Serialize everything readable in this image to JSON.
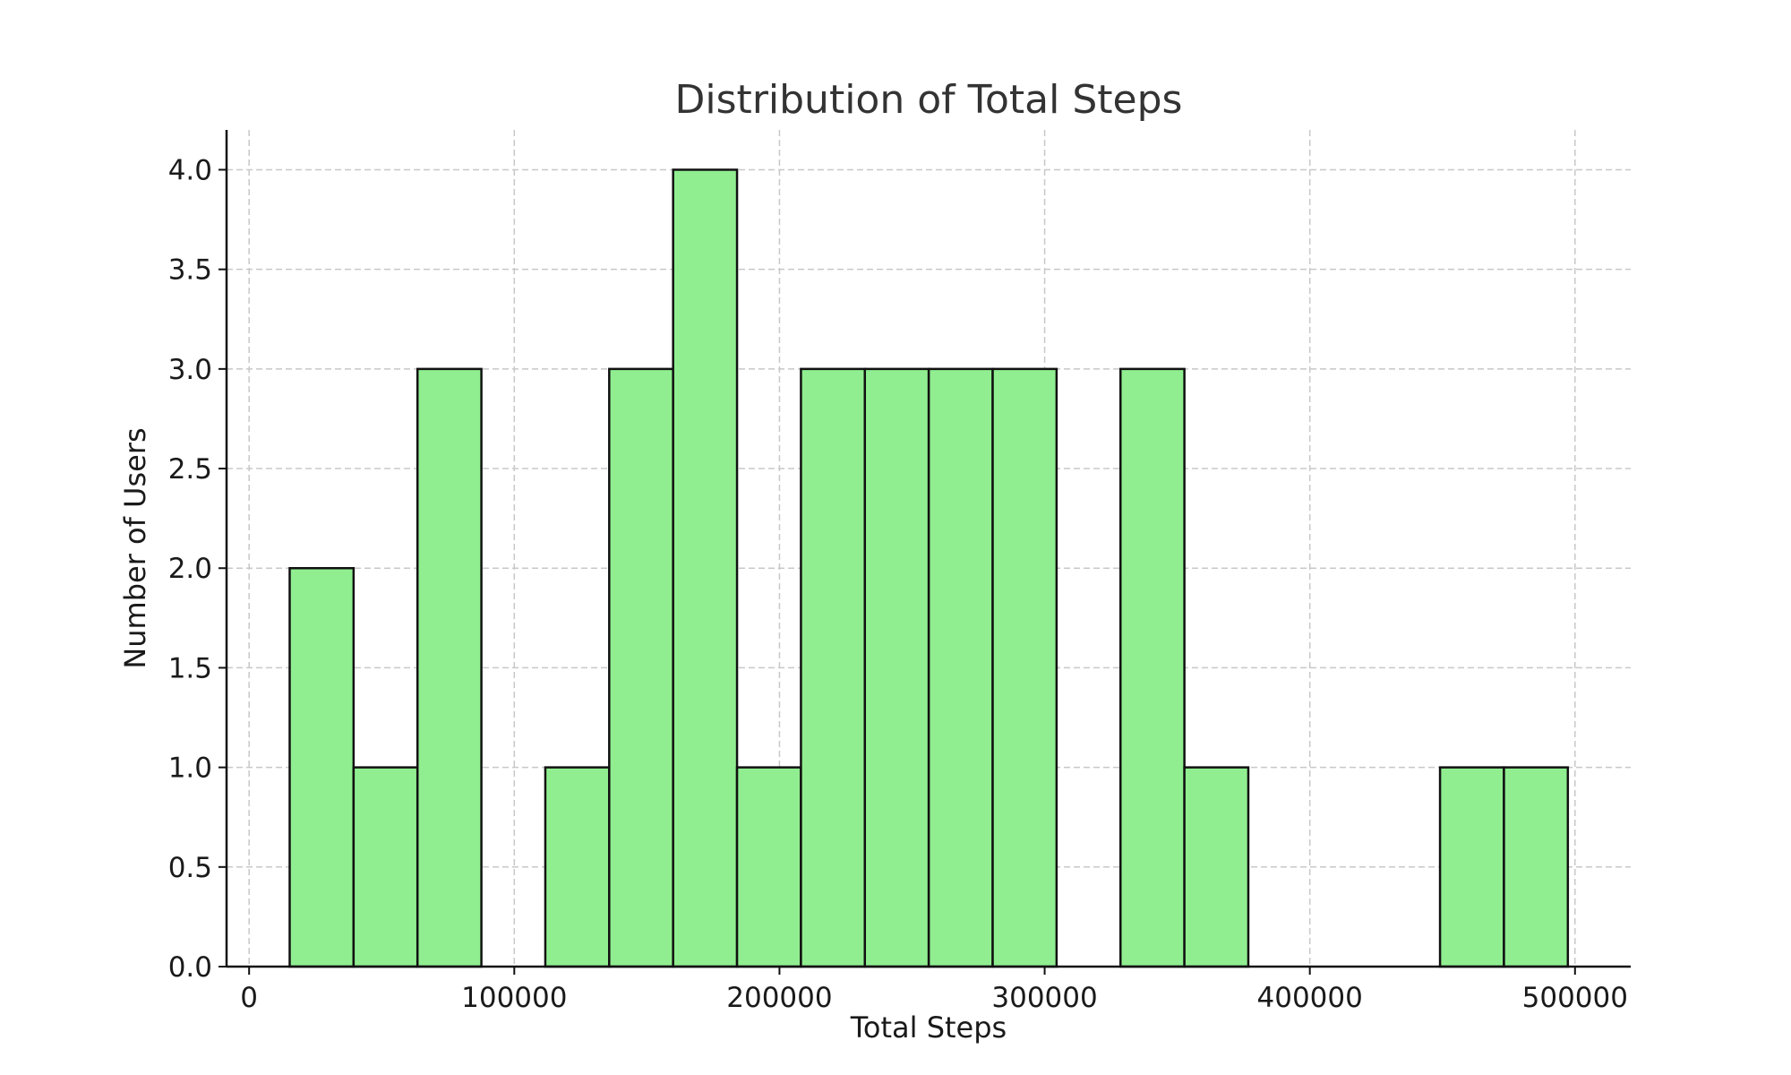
{
  "chart_data": {
    "type": "bar",
    "title": "Distribution of Total Steps",
    "xlabel": "Total Steps",
    "ylabel": "Number of Users",
    "bar_color": "#90ee90",
    "edge_color": "#111111",
    "grid": true,
    "xlim": [
      -8500,
      521000
    ],
    "ylim": [
      0,
      4.2
    ],
    "x_ticks": [
      0,
      100000,
      200000,
      300000,
      400000,
      500000
    ],
    "y_ticks": [
      "0.0",
      "0.5",
      "1.0",
      "1.5",
      "2.0",
      "2.5",
      "3.0",
      "3.5",
      "4.0"
    ],
    "bins": [
      {
        "start": 15300,
        "end": 39400,
        "count": 2
      },
      {
        "start": 39400,
        "end": 63500,
        "count": 1
      },
      {
        "start": 63500,
        "end": 87600,
        "count": 3
      },
      {
        "start": 87600,
        "end": 111700,
        "count": 0
      },
      {
        "start": 111700,
        "end": 135800,
        "count": 1
      },
      {
        "start": 135800,
        "end": 159900,
        "count": 3
      },
      {
        "start": 159900,
        "end": 184000,
        "count": 4
      },
      {
        "start": 184000,
        "end": 208100,
        "count": 1
      },
      {
        "start": 208100,
        "end": 232200,
        "count": 3
      },
      {
        "start": 232200,
        "end": 256300,
        "count": 3
      },
      {
        "start": 256300,
        "end": 280400,
        "count": 3
      },
      {
        "start": 280400,
        "end": 304500,
        "count": 3
      },
      {
        "start": 304500,
        "end": 328600,
        "count": 0
      },
      {
        "start": 328600,
        "end": 352700,
        "count": 3
      },
      {
        "start": 352700,
        "end": 376800,
        "count": 1
      },
      {
        "start": 376800,
        "end": 400900,
        "count": 0
      },
      {
        "start": 400900,
        "end": 425000,
        "count": 0
      },
      {
        "start": 425000,
        "end": 449100,
        "count": 0
      },
      {
        "start": 449100,
        "end": 473200,
        "count": 1
      },
      {
        "start": 473200,
        "end": 497300,
        "count": 1
      }
    ]
  }
}
